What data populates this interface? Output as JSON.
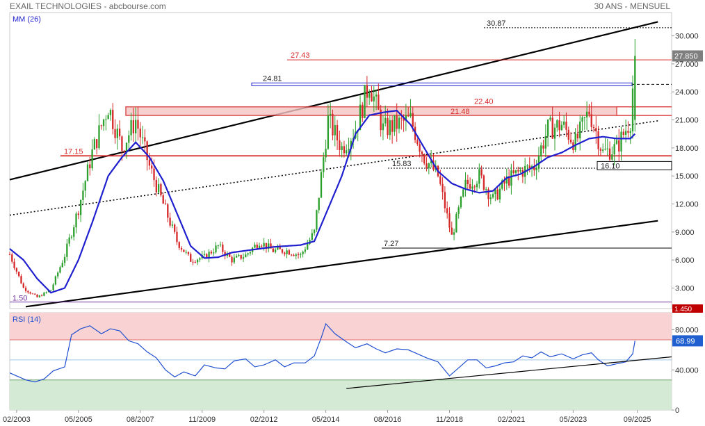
{
  "header": {
    "title": "EXAIL TECHNOLOGIES - abcbourse.com",
    "period": "30 ANS - MENSUEL"
  },
  "colors": {
    "up": "#2ca02c",
    "down": "#d62728",
    "ma": "#1f1fd0",
    "rsi": "#1f4fd0",
    "resistance": "#d62728",
    "support": "#000000",
    "overbought_zone": "#f9d3d3",
    "oversold_zone": "#d5ead5",
    "price_badge": "#7f7f7f",
    "low_badge": "#c00000"
  },
  "chart_data": [
    {
      "type": "candlestick",
      "name": "price",
      "indicator_label": "MM (26)",
      "y_ticks": [
        "3.000",
        "6.000",
        "9.000",
        "12.000",
        "15.000",
        "18.000",
        "21.000",
        "24.000",
        "27.000",
        "30.000"
      ],
      "y_tick_values": [
        3,
        6,
        9,
        12,
        15,
        18,
        21,
        24,
        27,
        30
      ],
      "ylim": [
        0.8,
        32.5
      ],
      "x_ticks": [
        "02/2003",
        "05/2005",
        "08/2007",
        "11/2009",
        "02/2012",
        "05/2014",
        "08/2016",
        "11/2018",
        "02/2021",
        "05/2023",
        "09/2025"
      ],
      "x_tick_values": [
        "2003-02",
        "2005-05",
        "2007-08",
        "2009-11",
        "2012-02",
        "2014-05",
        "2016-08",
        "2018-11",
        "2021-02",
        "2023-05",
        "2025-09"
      ],
      "last_price": "27.850",
      "last_price_value": 27.85,
      "low_badge": "1.450",
      "levels": [
        {
          "label": "30.87",
          "value": 30.87,
          "style": "dotted",
          "color": "#000000"
        },
        {
          "label": "27.43",
          "value": 27.43,
          "style": "solid",
          "color": "#d62728"
        },
        {
          "label": "24.81",
          "value": 24.81,
          "style": "box",
          "color": "#1f1fd0"
        },
        {
          "label": "22.40",
          "value": 22.4,
          "style": "zone-top",
          "color": "#d62728"
        },
        {
          "label": "21.48",
          "value": 21.48,
          "style": "zone-bottom",
          "color": "#d62728"
        },
        {
          "label": "17.15",
          "value": 17.15,
          "style": "solid",
          "color": "#d62728"
        },
        {
          "label": "16.10",
          "value": 16.1,
          "style": "box",
          "color": "#000000"
        },
        {
          "label": "15.83",
          "value": 15.83,
          "style": "dotted",
          "color": "#000000"
        },
        {
          "label": "7.27",
          "value": 7.27,
          "style": "solid",
          "color": "#000000"
        },
        {
          "label": "1.50",
          "value": 1.5,
          "style": "solid",
          "color": "#7030a0"
        }
      ],
      "trendlines": [
        {
          "name": "upper-channel",
          "from": [
            "2002-11",
            14.6
          ],
          "to": [
            "2026-06",
            31.5
          ],
          "style": "solid"
        },
        {
          "name": "mid-channel",
          "from": [
            "2002-11",
            10.8
          ],
          "to": [
            "2026-06",
            20.9
          ],
          "style": "dotted"
        },
        {
          "name": "lower-channel",
          "from": [
            "2003-06",
            1.0
          ],
          "to": [
            "2026-06",
            10.2
          ],
          "style": "solid"
        }
      ],
      "candles_ohlc_anchor_closes": [
        [
          "2002-11",
          6.6
        ],
        [
          "2003-05",
          3.0
        ],
        [
          "2003-11",
          2.0
        ],
        [
          "2004-05",
          2.8
        ],
        [
          "2004-11",
          6.5
        ],
        [
          "2005-05",
          11.5
        ],
        [
          "2005-11",
          17.5
        ],
        [
          "2006-06",
          22.5
        ],
        [
          "2006-12",
          18.0
        ],
        [
          "2007-06",
          21.0
        ],
        [
          "2007-12",
          16.0
        ],
        [
          "2008-06",
          12.0
        ],
        [
          "2008-12",
          8.0
        ],
        [
          "2009-06",
          6.0
        ],
        [
          "2009-12",
          6.3
        ],
        [
          "2010-06",
          7.5
        ],
        [
          "2010-12",
          6.0
        ],
        [
          "2011-06",
          6.5
        ],
        [
          "2011-12",
          8.0
        ],
        [
          "2012-06",
          7.0
        ],
        [
          "2012-12",
          7.0
        ],
        [
          "2013-06",
          6.5
        ],
        [
          "2013-12",
          9.0
        ],
        [
          "2014-06",
          21.0
        ],
        [
          "2014-12",
          18.0
        ],
        [
          "2015-06",
          20.0
        ],
        [
          "2015-12",
          25.0
        ],
        [
          "2016-06",
          20.0
        ],
        [
          "2016-12",
          20.5
        ],
        [
          "2017-06",
          21.0
        ],
        [
          "2017-12",
          17.0
        ],
        [
          "2018-06",
          15.0
        ],
        [
          "2018-12",
          8.5
        ],
        [
          "2019-06",
          14.0
        ],
        [
          "2019-12",
          15.0
        ],
        [
          "2020-06",
          12.5
        ],
        [
          "2020-12",
          14.5
        ],
        [
          "2021-06",
          15.5
        ],
        [
          "2021-12",
          16.0
        ],
        [
          "2022-06",
          20.0
        ],
        [
          "2022-12",
          20.5
        ],
        [
          "2023-06",
          18.5
        ],
        [
          "2023-12",
          22.0
        ],
        [
          "2024-06",
          17.5
        ],
        [
          "2024-12",
          18.0
        ],
        [
          "2025-06",
          21.0
        ],
        [
          "2025-08",
          27.85
        ]
      ],
      "ma_closes": [
        [
          "2002-11",
          7.2
        ],
        [
          "2003-05",
          6.0
        ],
        [
          "2003-11",
          4.0
        ],
        [
          "2004-05",
          2.5
        ],
        [
          "2004-11",
          3.0
        ],
        [
          "2005-05",
          6.0
        ],
        [
          "2005-11",
          10.0
        ],
        [
          "2006-06",
          15.0
        ],
        [
          "2006-12",
          17.0
        ],
        [
          "2007-06",
          18.6
        ],
        [
          "2007-12",
          17.0
        ],
        [
          "2008-06",
          14.5
        ],
        [
          "2008-12",
          11.0
        ],
        [
          "2009-06",
          7.5
        ],
        [
          "2009-12",
          6.2
        ],
        [
          "2010-06",
          6.3
        ],
        [
          "2010-12",
          6.8
        ],
        [
          "2011-06",
          7.0
        ],
        [
          "2011-12",
          7.2
        ],
        [
          "2012-06",
          7.4
        ],
        [
          "2012-12",
          7.5
        ],
        [
          "2013-06",
          7.6
        ],
        [
          "2013-12",
          8.0
        ],
        [
          "2014-06",
          11.5
        ],
        [
          "2014-12",
          15.0
        ],
        [
          "2015-06",
          19.5
        ],
        [
          "2015-12",
          21.5
        ],
        [
          "2016-06",
          21.8
        ],
        [
          "2016-12",
          22.0
        ],
        [
          "2017-06",
          20.5
        ],
        [
          "2017-12",
          18.0
        ],
        [
          "2018-06",
          15.5
        ],
        [
          "2018-12",
          14.2
        ],
        [
          "2019-06",
          13.6
        ],
        [
          "2019-12",
          13.2
        ],
        [
          "2020-06",
          13.4
        ],
        [
          "2020-12",
          14.8
        ],
        [
          "2021-06",
          15.2
        ],
        [
          "2021-12",
          16.0
        ],
        [
          "2022-06",
          17.0
        ],
        [
          "2022-12",
          17.5
        ],
        [
          "2023-06",
          18.3
        ],
        [
          "2023-12",
          19.0
        ],
        [
          "2024-06",
          19.2
        ],
        [
          "2024-12",
          19.0
        ],
        [
          "2025-06",
          19.0
        ],
        [
          "2025-08",
          19.5
        ]
      ]
    },
    {
      "type": "line",
      "name": "rsi",
      "indicator_label": "RSI (14)",
      "y_ticks": [
        "0",
        "40.000",
        "80.000"
      ],
      "y_tick_values": [
        0,
        40,
        80
      ],
      "ylim": [
        0,
        97
      ],
      "overbought": 70,
      "oversold": 30,
      "last_value": "68.99",
      "last_value_num": 68.99,
      "series": [
        [
          "2002-11",
          37
        ],
        [
          "2003-02",
          34
        ],
        [
          "2003-06",
          30
        ],
        [
          "2003-10",
          28
        ],
        [
          "2004-02",
          31
        ],
        [
          "2004-06",
          39
        ],
        [
          "2004-11",
          43
        ],
        [
          "2005-02",
          75
        ],
        [
          "2005-06",
          81
        ],
        [
          "2005-10",
          84
        ],
        [
          "2006-03",
          76
        ],
        [
          "2006-07",
          81
        ],
        [
          "2006-11",
          79
        ],
        [
          "2007-03",
          69
        ],
        [
          "2007-07",
          66
        ],
        [
          "2007-11",
          58
        ],
        [
          "2008-03",
          52
        ],
        [
          "2008-07",
          40
        ],
        [
          "2008-11",
          33
        ],
        [
          "2009-03",
          38
        ],
        [
          "2009-08",
          34
        ],
        [
          "2009-12",
          45
        ],
        [
          "2010-05",
          42
        ],
        [
          "2010-09",
          41
        ],
        [
          "2011-01",
          49
        ],
        [
          "2011-06",
          51
        ],
        [
          "2011-10",
          43
        ],
        [
          "2012-02",
          45
        ],
        [
          "2012-07",
          50
        ],
        [
          "2012-11",
          43
        ],
        [
          "2013-03",
          47
        ],
        [
          "2013-08",
          47
        ],
        [
          "2013-12",
          54
        ],
        [
          "2014-03",
          72
        ],
        [
          "2014-05",
          86
        ],
        [
          "2014-09",
          76
        ],
        [
          "2015-02",
          68
        ],
        [
          "2015-06",
          62
        ],
        [
          "2015-11",
          66
        ],
        [
          "2016-03",
          61
        ],
        [
          "2016-07",
          57
        ],
        [
          "2016-12",
          61
        ],
        [
          "2017-05",
          60
        ],
        [
          "2017-09",
          56
        ],
        [
          "2018-01",
          52
        ],
        [
          "2018-06",
          48
        ],
        [
          "2018-11",
          34
        ],
        [
          "2019-03",
          42
        ],
        [
          "2019-07",
          50
        ],
        [
          "2019-11",
          50
        ],
        [
          "2020-03",
          42
        ],
        [
          "2020-07",
          44
        ],
        [
          "2020-11",
          47
        ],
        [
          "2021-03",
          48
        ],
        [
          "2021-07",
          54
        ],
        [
          "2021-11",
          52
        ],
        [
          "2022-03",
          58
        ],
        [
          "2022-07",
          53
        ],
        [
          "2022-12",
          56
        ],
        [
          "2023-05",
          51
        ],
        [
          "2023-09",
          55
        ],
        [
          "2024-01",
          57
        ],
        [
          "2024-04",
          50
        ],
        [
          "2024-08",
          44
        ],
        [
          "2024-12",
          46
        ],
        [
          "2025-04",
          48
        ],
        [
          "2025-07",
          56
        ],
        [
          "2025-08",
          68.99
        ]
      ],
      "trendlines": [
        {
          "name": "rsi-support",
          "from": [
            "2015-02",
            21.5
          ],
          "to": [
            "2026-12",
            53
          ]
        }
      ]
    }
  ]
}
